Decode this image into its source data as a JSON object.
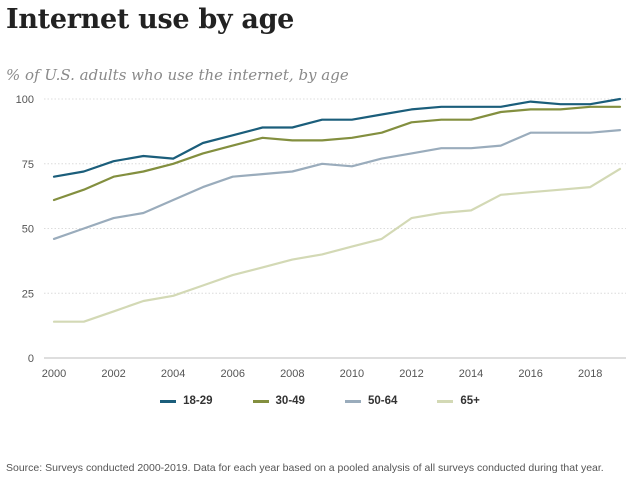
{
  "title": "Internet use by age",
  "subtitle": "% of U.S. adults who use the internet, by age",
  "source": "Source: Surveys conducted 2000-2019. Data for each year based on a pooled analysis of all surveys conducted during that year.",
  "chart_data": {
    "type": "line",
    "x": [
      2000,
      2001,
      2002,
      2003,
      2004,
      2005,
      2006,
      2007,
      2008,
      2009,
      2010,
      2011,
      2012,
      2013,
      2014,
      2015,
      2016,
      2017,
      2018,
      2019
    ],
    "x_ticks": [
      2000,
      2002,
      2004,
      2006,
      2008,
      2010,
      2012,
      2014,
      2016,
      2018
    ],
    "y_ticks": [
      0,
      25,
      50,
      75,
      100
    ],
    "xlim": [
      2000,
      2019
    ],
    "ylim": [
      0,
      100
    ],
    "grid": "horizontal",
    "legend_position": "bottom",
    "series": [
      {
        "name": "18-29",
        "color": "#1b5e7b",
        "values": [
          70,
          72,
          76,
          78,
          77,
          83,
          86,
          89,
          89,
          92,
          92,
          94,
          96,
          97,
          97,
          97,
          99,
          98,
          98,
          100
        ]
      },
      {
        "name": "30-49",
        "color": "#838f3f",
        "values": [
          61,
          65,
          70,
          72,
          75,
          79,
          82,
          85,
          84,
          84,
          85,
          87,
          91,
          92,
          92,
          95,
          96,
          96,
          97,
          97
        ]
      },
      {
        "name": "50-64",
        "color": "#9aacbc",
        "values": [
          46,
          50,
          54,
          56,
          61,
          66,
          70,
          71,
          72,
          75,
          74,
          77,
          79,
          81,
          81,
          82,
          87,
          87,
          87,
          88
        ]
      },
      {
        "name": "65+",
        "color": "#d3d9b5",
        "values": [
          14,
          14,
          18,
          22,
          24,
          28,
          32,
          35,
          38,
          40,
          43,
          46,
          54,
          56,
          57,
          63,
          64,
          65,
          66,
          73
        ]
      }
    ]
  }
}
